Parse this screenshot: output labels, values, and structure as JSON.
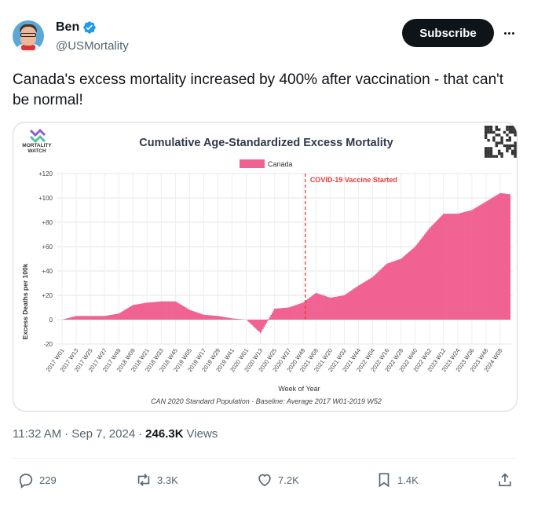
{
  "author": {
    "name": "Ben",
    "handle": "@USMortality",
    "verified": true
  },
  "subscribe_label": "Subscribe",
  "tweet_text": "Canada's excess mortality increased by 400% after vaccination - that can't be normal!",
  "meta": {
    "time": "11:32 AM",
    "separator": "·",
    "date": "Sep 7, 2024",
    "views_count": "246.3K",
    "views_label": "Views"
  },
  "actions": {
    "reply_count": "229",
    "repost_count": "3.3K",
    "like_count": "7.2K",
    "bookmark_count": "1.4K"
  },
  "colors": {
    "series": "#f06292",
    "annotation": "#e53935",
    "subscribe_bg": "#0f1419"
  },
  "chart_data": {
    "type": "bar",
    "brand_line1": "MORTALITY",
    "brand_line2": "WATCH",
    "title": "Cumulative Age-Standardized Excess Mortality",
    "xlabel": "Week of Year",
    "ylabel": "Excess Deaths per 100k",
    "footer": "CAN 2020 Standard Population · Baseline: Average 2017 W01-2019 W52",
    "ylim": [
      -20,
      120
    ],
    "yticks": [
      "+120",
      "+100",
      "+80",
      "+60",
      "+40",
      "+20",
      "0",
      "-20"
    ],
    "grid": true,
    "legend": "top-center",
    "series": [
      {
        "name": "Canada",
        "x": [
          "2017 W01",
          "2017 W13",
          "2017 W25",
          "2017 W37",
          "2017 W49",
          "2018 W09",
          "2018 W21",
          "2018 W33",
          "2018 W45",
          "2019 W05",
          "2019 W17",
          "2019 W29",
          "2019 W41",
          "2020 W01",
          "2020 W13",
          "2020 W25",
          "2020 W37",
          "2020 W49",
          "2021 W08",
          "2021 W20",
          "2021 W32",
          "2021 W44",
          "2022 W04",
          "2022 W16",
          "2022 W28",
          "2022 W40",
          "2022 W52",
          "2023 W12",
          "2023 W24",
          "2023 W36",
          "2023 W48",
          "2024 W08",
          "2024 W16"
        ],
        "values": [
          0,
          3,
          3,
          3,
          5,
          12,
          14,
          15,
          15,
          8,
          4,
          3,
          1,
          0,
          -11,
          9,
          10,
          14,
          22,
          18,
          20,
          28,
          35,
          46,
          50,
          60,
          75,
          87,
          87,
          90,
          97,
          104,
          103
        ]
      }
    ],
    "xticks": [
      "2017 W01",
      "2017 W13",
      "2017 W25",
      "2017 W37",
      "2017 W49",
      "2018 W09",
      "2018 W21",
      "2018 W33",
      "2018 W45",
      "2019 W05",
      "2019 W17",
      "2019 W29",
      "2019 W41",
      "2020 W01",
      "2020 W13",
      "2020 W25",
      "2020 W37",
      "2020 W49",
      "2021 W08",
      "2021 W20",
      "2021 W32",
      "2021 W44",
      "2022 W04",
      "2022 W16",
      "2022 W28",
      "2022 W40",
      "2022 W52",
      "2023 W12",
      "2023 W24",
      "2023 W36",
      "2023 W48",
      "2024 W08"
    ],
    "annotation": {
      "label": "COVID-19 Vaccine Started",
      "x": "2020 W51"
    }
  }
}
